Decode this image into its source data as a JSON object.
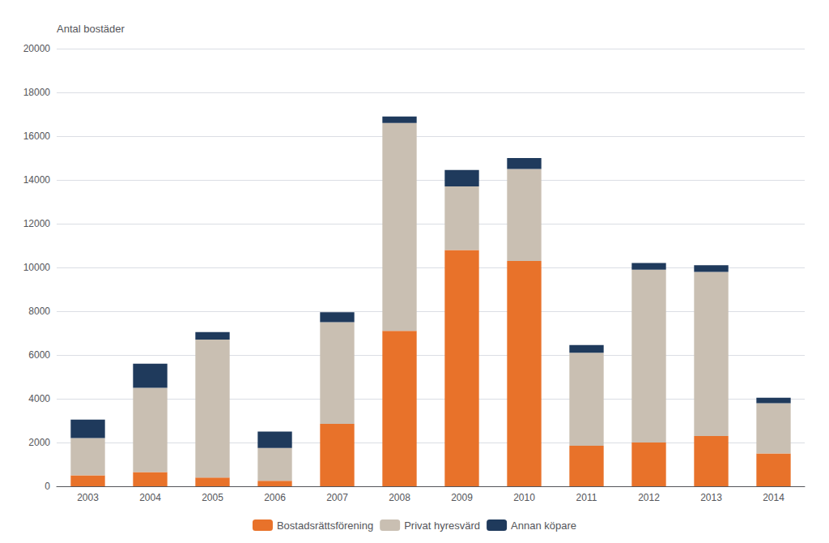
{
  "chart_data": {
    "type": "bar",
    "stacked": true,
    "ylabel": "Antal bostäder",
    "categories": [
      "2003",
      "2004",
      "2005",
      "2006",
      "2007",
      "2008",
      "2009",
      "2010",
      "2011",
      "2012",
      "2013",
      "2014"
    ],
    "series": [
      {
        "name": "Bostadsrättsförening",
        "color": "#E8722A",
        "values": [
          500,
          650,
          400,
          250,
          2850,
          7100,
          10800,
          10300,
          1850,
          2000,
          2300,
          1500
        ]
      },
      {
        "name": "Privat hyresvärd",
        "color": "#C9BFB2",
        "values": [
          1700,
          3850,
          6300,
          1500,
          4650,
          9500,
          2900,
          4200,
          4250,
          7900,
          7500,
          2300
        ]
      },
      {
        "name": "Annan köpare",
        "color": "#1F3A5C",
        "values": [
          850,
          1100,
          350,
          750,
          450,
          300,
          750,
          500,
          350,
          300,
          300,
          250
        ]
      }
    ],
    "ylim": [
      0,
      20000
    ],
    "yticks": [
      0,
      2000,
      4000,
      6000,
      8000,
      10000,
      12000,
      14000,
      16000,
      18000,
      20000
    ],
    "grid": true,
    "legend": "bottom"
  }
}
